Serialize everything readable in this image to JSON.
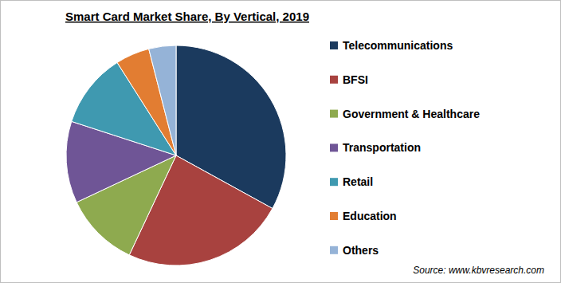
{
  "chart_data": {
    "type": "pie",
    "title": "Smart Card Market Share, By Vertical, 2019",
    "categories": [
      "Telecommunications",
      "BFSI",
      "Government & Healthcare",
      "Transportation",
      "Retail",
      "Education",
      "Others"
    ],
    "values": [
      33,
      24,
      11,
      12,
      11,
      5,
      4
    ],
    "colors": [
      "#1b3a5e",
      "#a8423f",
      "#8eaa4f",
      "#6f5596",
      "#3f99b0",
      "#e27d32",
      "#95b3d7"
    ],
    "legend": "right",
    "source": "Source: www.kbvresearch.com"
  }
}
